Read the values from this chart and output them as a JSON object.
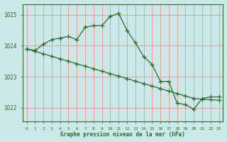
{
  "line1_x": [
    0,
    1,
    2,
    3,
    4,
    5,
    6,
    7,
    8,
    9,
    10,
    11,
    12,
    13,
    14,
    15,
    16,
    17,
    18,
    19,
    20,
    21,
    22,
    23
  ],
  "line1_y": [
    1023.9,
    1023.85,
    1024.05,
    1024.2,
    1024.25,
    1024.3,
    1024.2,
    1024.6,
    1024.65,
    1024.65,
    1024.95,
    1025.05,
    1024.5,
    1024.1,
    1023.65,
    1023.4,
    1022.85,
    1022.85,
    1022.15,
    1022.1,
    1021.95,
    1022.3,
    1022.35,
    1022.35
  ],
  "line2_x": [
    0,
    1,
    2,
    3,
    4,
    5,
    6,
    7,
    8,
    9,
    10,
    11,
    12,
    13,
    14,
    15,
    16,
    17,
    18,
    19,
    20,
    21,
    22,
    23
  ],
  "line2_y": [
    1023.9,
    1023.82,
    1023.74,
    1023.66,
    1023.58,
    1023.5,
    1023.42,
    1023.34,
    1023.26,
    1023.18,
    1023.1,
    1023.02,
    1022.94,
    1022.86,
    1022.78,
    1022.7,
    1022.62,
    1022.54,
    1022.46,
    1022.38,
    1022.3,
    1022.28,
    1022.26,
    1022.24
  ],
  "line_color": "#2d6a2d",
  "bg_color": "#cce8e8",
  "grid_color": "#f08080",
  "xlabel": "Graphe pression niveau de la mer (hPa)",
  "ylim_min": 1021.55,
  "ylim_max": 1025.35,
  "yticks": [
    1022,
    1023,
    1024,
    1025
  ],
  "xticks": [
    0,
    1,
    2,
    3,
    4,
    5,
    6,
    7,
    8,
    9,
    10,
    11,
    12,
    13,
    14,
    15,
    16,
    17,
    18,
    19,
    20,
    21,
    22,
    23
  ]
}
